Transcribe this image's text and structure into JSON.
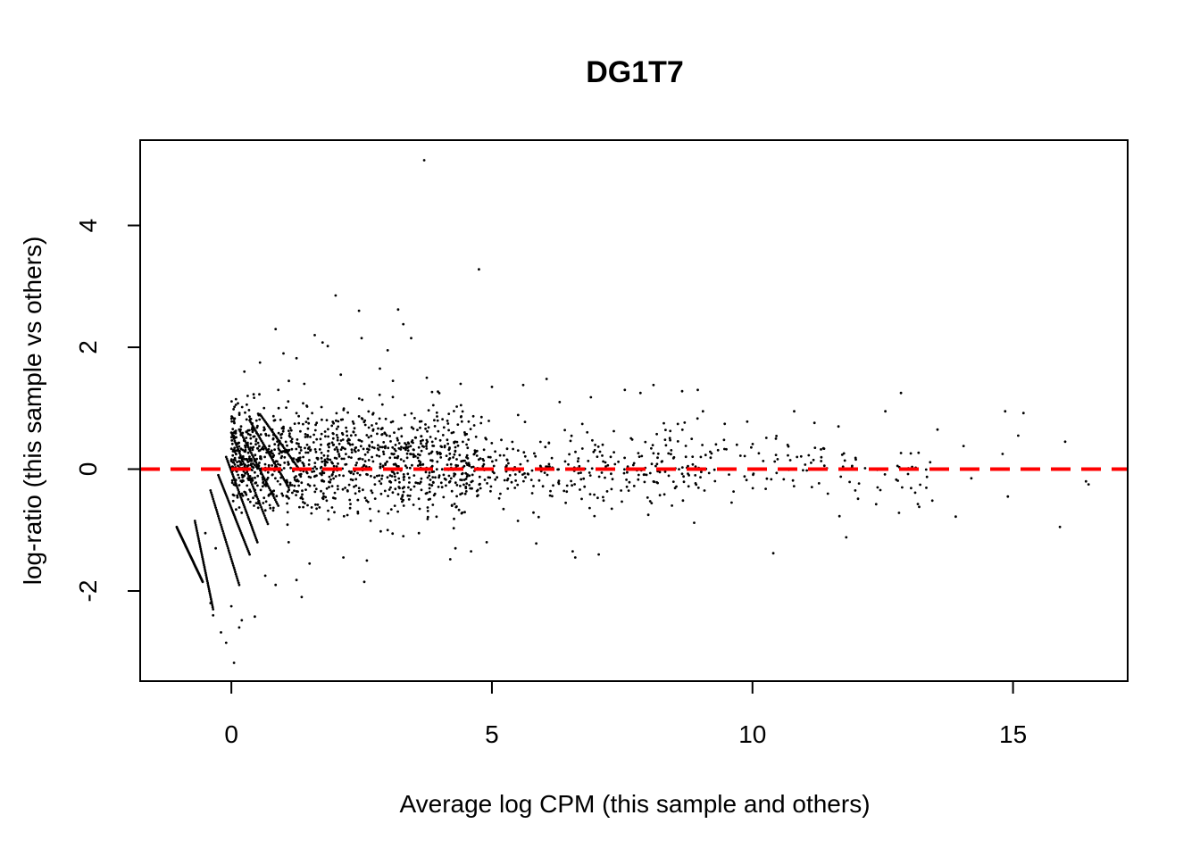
{
  "chart_data": {
    "type": "scatter",
    "title": "DG1T7",
    "xlabel": "Average log CPM (this sample and others)",
    "ylabel": "log-ratio (this sample vs others)",
    "xlim": [
      -1.75,
      17.2
    ],
    "ylim": [
      -3.48,
      5.4
    ],
    "xticks": [
      0,
      5,
      10,
      15
    ],
    "yticks": [
      -2,
      0,
      2,
      4
    ],
    "grid": false,
    "legend": "none",
    "point_color": "#000000",
    "reference_line": {
      "y": 0,
      "color": "#ff0000",
      "style": "dashed"
    },
    "points": [
      [
        3.7,
        5.07
      ],
      [
        4.75,
        3.28
      ],
      [
        2.0,
        2.85
      ],
      [
        2.45,
        2.6
      ],
      [
        3.2,
        2.62
      ],
      [
        3.3,
        2.38
      ],
      [
        3.45,
        2.15
      ],
      [
        0.85,
        2.3
      ],
      [
        1.6,
        2.2
      ],
      [
        1.75,
        2.08
      ],
      [
        1.85,
        2.02
      ],
      [
        2.5,
        2.15
      ],
      [
        3.0,
        1.95
      ],
      [
        1.0,
        1.9
      ],
      [
        1.25,
        1.82
      ],
      [
        0.25,
        1.6
      ],
      [
        0.55,
        1.75
      ],
      [
        2.1,
        1.55
      ],
      [
        2.85,
        1.65
      ],
      [
        3.1,
        1.45
      ],
      [
        1.4,
        1.4
      ],
      [
        0.9,
        1.3
      ],
      [
        6.05,
        1.48
      ],
      [
        7.55,
        1.3
      ],
      [
        7.85,
        1.25
      ],
      [
        8.1,
        1.38
      ],
      [
        8.65,
        1.28
      ],
      [
        8.95,
        1.3
      ],
      [
        12.85,
        1.25
      ],
      [
        6.9,
        1.18
      ],
      [
        3.75,
        1.5
      ],
      [
        4.4,
        1.4
      ],
      [
        5.0,
        1.35
      ],
      [
        5.6,
        1.38
      ],
      [
        6.3,
        1.1
      ],
      [
        9.05,
        0.95
      ],
      [
        10.8,
        0.95
      ],
      [
        12.55,
        0.95
      ],
      [
        15.2,
        0.92
      ],
      [
        14.85,
        0.95
      ],
      [
        9.9,
        0.78
      ],
      [
        13.55,
        0.65
      ],
      [
        11.65,
        0.7
      ],
      [
        16.0,
        0.45
      ],
      [
        15.1,
        0.55
      ],
      [
        14.05,
        0.38
      ],
      [
        14.8,
        0.25
      ],
      [
        10.45,
        0.5
      ],
      [
        11.2,
        0.35
      ],
      [
        9.7,
        0.4
      ],
      [
        13.9,
        -0.78
      ],
      [
        13.2,
        -0.62
      ],
      [
        11.8,
        -1.12
      ],
      [
        10.4,
        -1.38
      ],
      [
        15.9,
        -0.95
      ],
      [
        16.45,
        -0.25
      ],
      [
        16.4,
        -0.2
      ],
      [
        14.9,
        -0.45
      ],
      [
        14.2,
        -0.15
      ],
      [
        12.4,
        -0.3
      ],
      [
        9.6,
        -0.55
      ],
      [
        7.05,
        -1.4
      ],
      [
        6.6,
        -1.45
      ],
      [
        6.55,
        -1.35
      ],
      [
        5.85,
        -1.22
      ],
      [
        4.2,
        -1.48
      ],
      [
        4.6,
        -1.35
      ],
      [
        4.3,
        -1.3
      ],
      [
        2.55,
        -1.85
      ],
      [
        1.35,
        -2.1
      ],
      [
        1.25,
        -1.82
      ],
      [
        0.2,
        -2.48
      ],
      [
        0.15,
        -2.6
      ],
      [
        0.45,
        -2.42
      ],
      [
        0.05,
        -3.18
      ],
      [
        -0.1,
        -2.85
      ],
      [
        -0.2,
        -2.68
      ],
      [
        -0.35,
        -2.4
      ],
      [
        -0.4,
        -2.2
      ],
      [
        0.0,
        -2.25
      ],
      [
        -0.3,
        -1.3
      ],
      [
        -0.5,
        -1.05
      ],
      [
        0.65,
        -1.75
      ],
      [
        0.85,
        -1.9
      ],
      [
        1.5,
        -1.55
      ],
      [
        2.15,
        -1.45
      ],
      [
        2.6,
        -1.5
      ],
      [
        1.1,
        -1.2
      ],
      [
        3.6,
        -1.05
      ],
      [
        3.3,
        -1.1
      ],
      [
        3.0,
        -1.0
      ],
      [
        4.9,
        -1.2
      ],
      [
        5.5,
        -0.85
      ],
      [
        8.0,
        -0.75
      ],
      [
        7.3,
        -0.65
      ]
    ],
    "clusters": [
      {
        "x_range": [
          0.0,
          4.5
        ],
        "y_center": 0.15,
        "y_spread": 0.62,
        "count": 1150,
        "seed": 11
      },
      {
        "x_range": [
          4.5,
          9.0
        ],
        "y_center": 0.05,
        "y_spread": 0.48,
        "count": 330,
        "seed": 23
      },
      {
        "x_range": [
          9.0,
          13.5
        ],
        "y_center": 0.0,
        "y_spread": 0.4,
        "count": 110,
        "seed": 37
      }
    ],
    "bands": [
      {
        "x_start": -1.05,
        "y_start": -0.95,
        "x_end": -0.55,
        "y_end": -1.85,
        "count": 60
      },
      {
        "x_start": -0.7,
        "y_start": -0.85,
        "x_end": -0.35,
        "y_end": -2.3,
        "count": 45
      },
      {
        "x_start": -0.4,
        "y_start": -0.35,
        "x_end": 0.15,
        "y_end": -1.9,
        "count": 45
      },
      {
        "x_start": -0.25,
        "y_start": -0.1,
        "x_end": 0.35,
        "y_end": -1.4,
        "count": 45
      },
      {
        "x_start": -0.1,
        "y_start": 0.2,
        "x_end": 0.5,
        "y_end": -1.2,
        "count": 45
      },
      {
        "x_start": 0.0,
        "y_start": 0.6,
        "x_end": 0.7,
        "y_end": -0.9,
        "count": 45
      },
      {
        "x_start": 0.15,
        "y_start": 0.65,
        "x_end": 0.9,
        "y_end": -0.6,
        "count": 40
      },
      {
        "x_start": 0.35,
        "y_start": 0.8,
        "x_end": 1.1,
        "y_end": -0.3,
        "count": 40
      },
      {
        "x_start": 0.55,
        "y_start": 0.9,
        "x_end": 1.3,
        "y_end": 0.0,
        "count": 35
      }
    ]
  }
}
